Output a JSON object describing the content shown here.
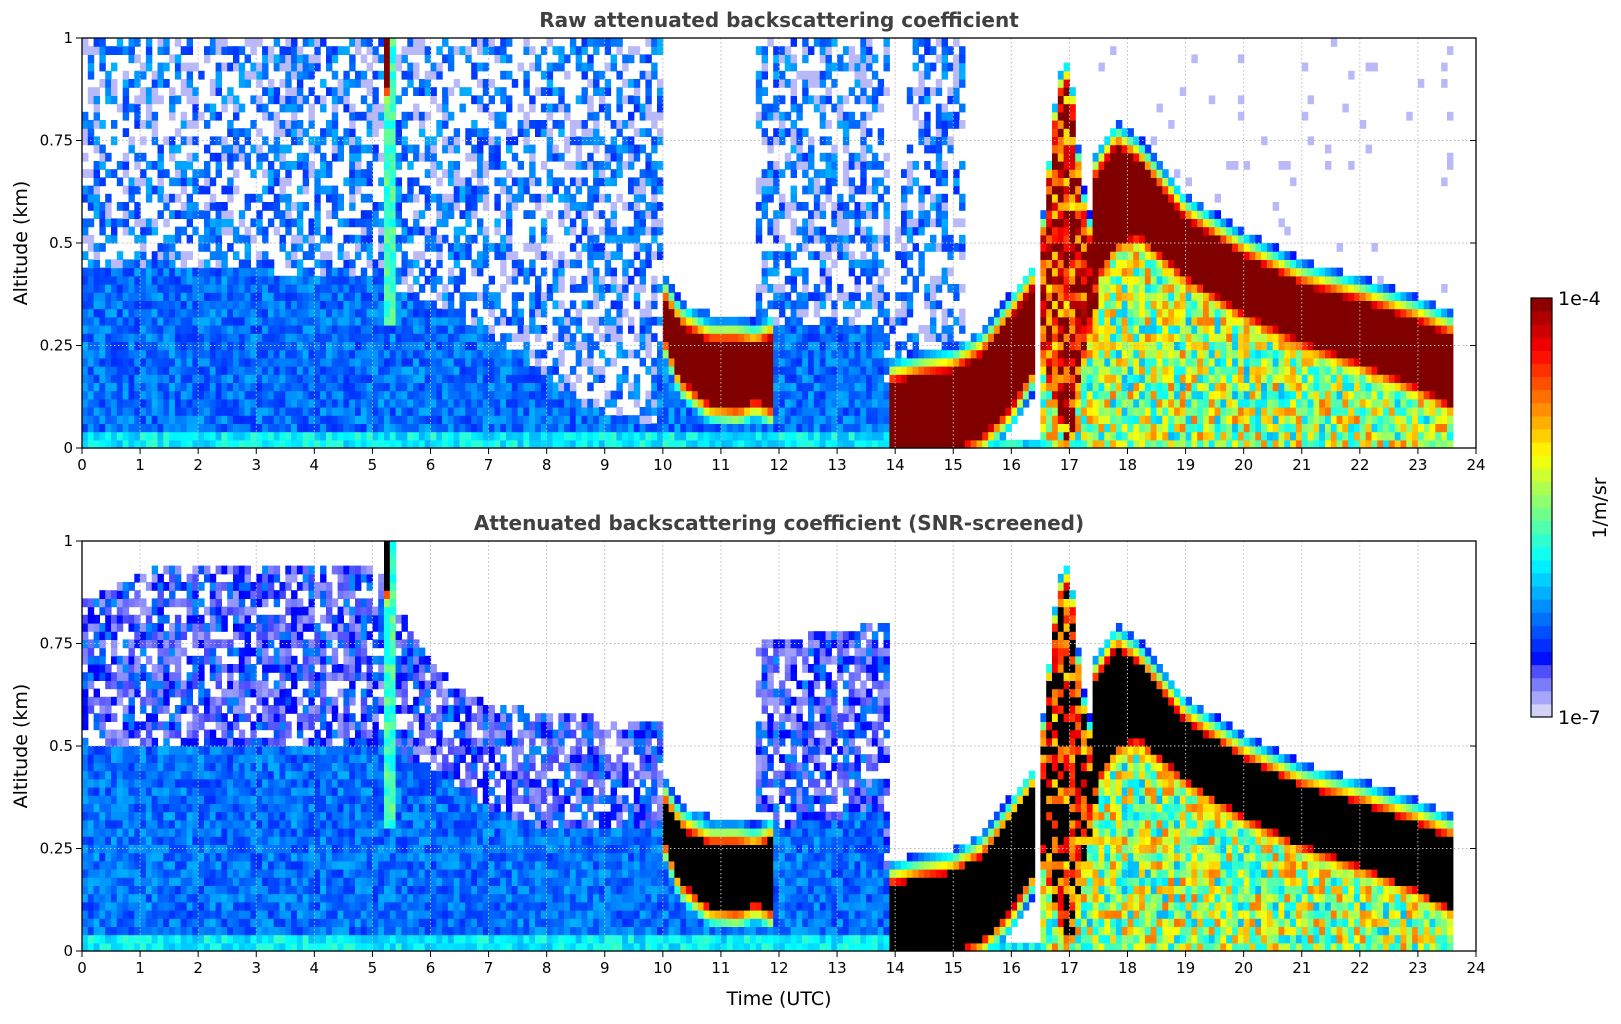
{
  "chart_data": [
    {
      "type": "heatmap",
      "title": "Raw attenuated backscattering coefficient",
      "xlabel": "",
      "ylabel": "Altitude (km)",
      "xlim": [
        0,
        24
      ],
      "ylim": [
        0,
        1
      ],
      "xticks": [
        "0",
        "1",
        "2",
        "3",
        "4",
        "5",
        "6",
        "7",
        "8",
        "9",
        "10",
        "11",
        "12",
        "13",
        "14",
        "15",
        "16",
        "17",
        "18",
        "19",
        "20",
        "21",
        "22",
        "23",
        "24"
      ],
      "yticks": [
        "0",
        "0.25",
        "0.5",
        "0.75",
        "1"
      ],
      "grid": true,
      "screened": false,
      "data_end_hour": 23.65,
      "value_units": "log10(1/m/sr)",
      "background_log10": -6.3,
      "aerosol_top_km": [
        [
          0,
          0.45
        ],
        [
          5,
          0.42
        ],
        [
          6,
          0.35
        ],
        [
          7,
          0.28
        ],
        [
          8,
          0.18
        ],
        [
          8.6,
          0.1
        ],
        [
          9.9,
          0.06
        ],
        [
          10,
          0.35
        ],
        [
          11.9,
          0.3
        ],
        [
          13.8,
          0.3
        ],
        [
          13.9,
          0.02
        ],
        [
          16.4,
          0.02
        ],
        [
          24,
          0.02
        ]
      ],
      "noise_top_km": [
        [
          0,
          1
        ],
        [
          10,
          1
        ],
        [
          10.05,
          0.36
        ],
        [
          11.6,
          0.3
        ],
        [
          11.65,
          1
        ],
        [
          13.85,
          1
        ],
        [
          13.9,
          0.25
        ],
        [
          14.3,
          1
        ],
        [
          15.2,
          1
        ],
        [
          15.25,
          0
        ],
        [
          24,
          0
        ]
      ],
      "layers": [
        {
          "name": "cloud-morning",
          "core_log10": -4.0,
          "profile": [
            [
              10.0,
              0.28,
              0.37
            ],
            [
              10.3,
              0.17,
              0.3
            ],
            [
              10.8,
              0.11,
              0.26
            ],
            [
              11.3,
              0.1,
              0.26
            ],
            [
              11.6,
              0.12,
              0.25
            ],
            [
              11.85,
              0.1,
              0.27
            ]
          ]
        },
        {
          "name": "cloud-afternoon",
          "core_log10": -4.0,
          "profile": [
            [
              13.9,
              0,
              0.16
            ],
            [
              14.5,
              0,
              0.18
            ],
            [
              15,
              0,
              0.19
            ],
            [
              15.5,
              0.03,
              0.23
            ],
            [
              16,
              0.1,
              0.32
            ],
            [
              16.4,
              0.2,
              0.4
            ]
          ]
        },
        {
          "name": "convective",
          "core_log10": -4.3,
          "profile": [
            [
              16.5,
              0.25,
              0.45
            ],
            [
              16.8,
              0.1,
              0.85
            ],
            [
              17,
              0,
              0.9
            ],
            [
              17.2,
              0.2,
              0.6
            ],
            [
              17.45,
              0.35,
              0.45
            ]
          ]
        },
        {
          "name": "cloud-evening",
          "core_log10": -4.0,
          "profile": [
            [
              17.4,
              0.4,
              0.65
            ],
            [
              17.8,
              0.5,
              0.74
            ],
            [
              18.2,
              0.52,
              0.7
            ],
            [
              19,
              0.42,
              0.56
            ],
            [
              20,
              0.33,
              0.47
            ],
            [
              21,
              0.26,
              0.4
            ],
            [
              22,
              0.21,
              0.36
            ],
            [
              23,
              0.15,
              0.31
            ],
            [
              23.65,
              0.1,
              0.27
            ]
          ]
        },
        {
          "name": "plume",
          "core_log10": -4.0,
          "profile": [
            [
              5.15,
              0.88,
              1
            ],
            [
              5.3,
              0.88,
              1
            ]
          ]
        }
      ],
      "virga": {
        "log10": -5.4,
        "profile": [
          [
            16.4,
            0
          ],
          [
            23.65,
            0
          ]
        ]
      },
      "plume_column": {
        "log10": -5.7,
        "t0": 5.2,
        "t1": 5.35,
        "z0": 0.3,
        "z1": 1
      }
    },
    {
      "type": "heatmap",
      "title": "Attenuated backscattering coefficient (SNR-screened)",
      "xlabel": "Time (UTC)",
      "ylabel": "Altitude (km)",
      "xlim": [
        0,
        24
      ],
      "ylim": [
        0,
        1
      ],
      "xticks": [
        "0",
        "1",
        "2",
        "3",
        "4",
        "5",
        "6",
        "7",
        "8",
        "9",
        "10",
        "11",
        "12",
        "13",
        "14",
        "15",
        "16",
        "17",
        "18",
        "19",
        "20",
        "21",
        "22",
        "23",
        "24"
      ],
      "yticks": [
        "0",
        "0.25",
        "0.5",
        "0.75",
        "1"
      ],
      "grid": true,
      "screened": true,
      "data_end_hour": 23.65,
      "value_units": "log10(1/m/sr)",
      "background_log10": -6.3,
      "aerosol_top_km": [
        [
          0,
          0.5
        ],
        [
          5,
          0.5
        ],
        [
          6,
          0.45
        ],
        [
          7,
          0.35
        ],
        [
          8,
          0.3
        ],
        [
          9.9,
          0.3
        ],
        [
          10,
          0.35
        ],
        [
          11.9,
          0.3
        ],
        [
          12,
          0.3
        ],
        [
          13.8,
          0.35
        ],
        [
          13.9,
          0.02
        ],
        [
          16.4,
          0.02
        ],
        [
          24,
          0.02
        ]
      ],
      "noise_top_km": [
        [
          0,
          0.85
        ],
        [
          1.5,
          0.95
        ],
        [
          5,
          0.95
        ],
        [
          6,
          0.7
        ],
        [
          7,
          0.6
        ],
        [
          10,
          0.55
        ],
        [
          10.05,
          0.36
        ],
        [
          11.6,
          0.3
        ],
        [
          11.65,
          0.75
        ],
        [
          13.85,
          0.8
        ],
        [
          13.9,
          0
        ],
        [
          24,
          0
        ]
      ],
      "layers": [
        {
          "name": "cloud-morning",
          "core_log10": -4.0,
          "profile": [
            [
              10.0,
              0.28,
              0.37
            ],
            [
              10.3,
              0.17,
              0.3
            ],
            [
              10.8,
              0.11,
              0.26
            ],
            [
              11.3,
              0.1,
              0.26
            ],
            [
              11.6,
              0.12,
              0.25
            ],
            [
              11.85,
              0.1,
              0.27
            ]
          ]
        },
        {
          "name": "cloud-afternoon",
          "core_log10": -4.0,
          "profile": [
            [
              13.9,
              0,
              0.16
            ],
            [
              14.5,
              0,
              0.18
            ],
            [
              15,
              0,
              0.19
            ],
            [
              15.5,
              0.03,
              0.23
            ],
            [
              16,
              0.1,
              0.32
            ],
            [
              16.4,
              0.2,
              0.4
            ]
          ]
        },
        {
          "name": "convective",
          "core_log10": -4.3,
          "profile": [
            [
              16.5,
              0.25,
              0.45
            ],
            [
              16.8,
              0.1,
              0.85
            ],
            [
              17,
              0,
              0.9
            ],
            [
              17.2,
              0.2,
              0.6
            ],
            [
              17.45,
              0.35,
              0.45
            ]
          ]
        },
        {
          "name": "cloud-evening",
          "core_log10": -4.0,
          "profile": [
            [
              17.4,
              0.4,
              0.65
            ],
            [
              17.8,
              0.5,
              0.74
            ],
            [
              18.2,
              0.52,
              0.7
            ],
            [
              19,
              0.42,
              0.56
            ],
            [
              20,
              0.33,
              0.47
            ],
            [
              21,
              0.26,
              0.4
            ],
            [
              22,
              0.21,
              0.36
            ],
            [
              23,
              0.15,
              0.31
            ],
            [
              23.65,
              0.1,
              0.27
            ]
          ]
        },
        {
          "name": "plume",
          "core_log10": -4.0,
          "profile": [
            [
              5.15,
              0.88,
              1
            ],
            [
              5.3,
              0.88,
              1
            ]
          ]
        }
      ],
      "virga": {
        "log10": -5.4,
        "profile": [
          [
            16.4,
            0
          ],
          [
            23.65,
            0
          ]
        ]
      },
      "plume_column": {
        "log10": -5.7,
        "t0": 5.2,
        "t1": 5.35,
        "z0": 0.3,
        "z1": 1
      }
    }
  ],
  "colorbar": {
    "label": "1/m/sr",
    "max_label": "1e-4",
    "min_label": "1e-7",
    "range_log10": [
      -7,
      -4
    ],
    "colormap": "jet"
  }
}
